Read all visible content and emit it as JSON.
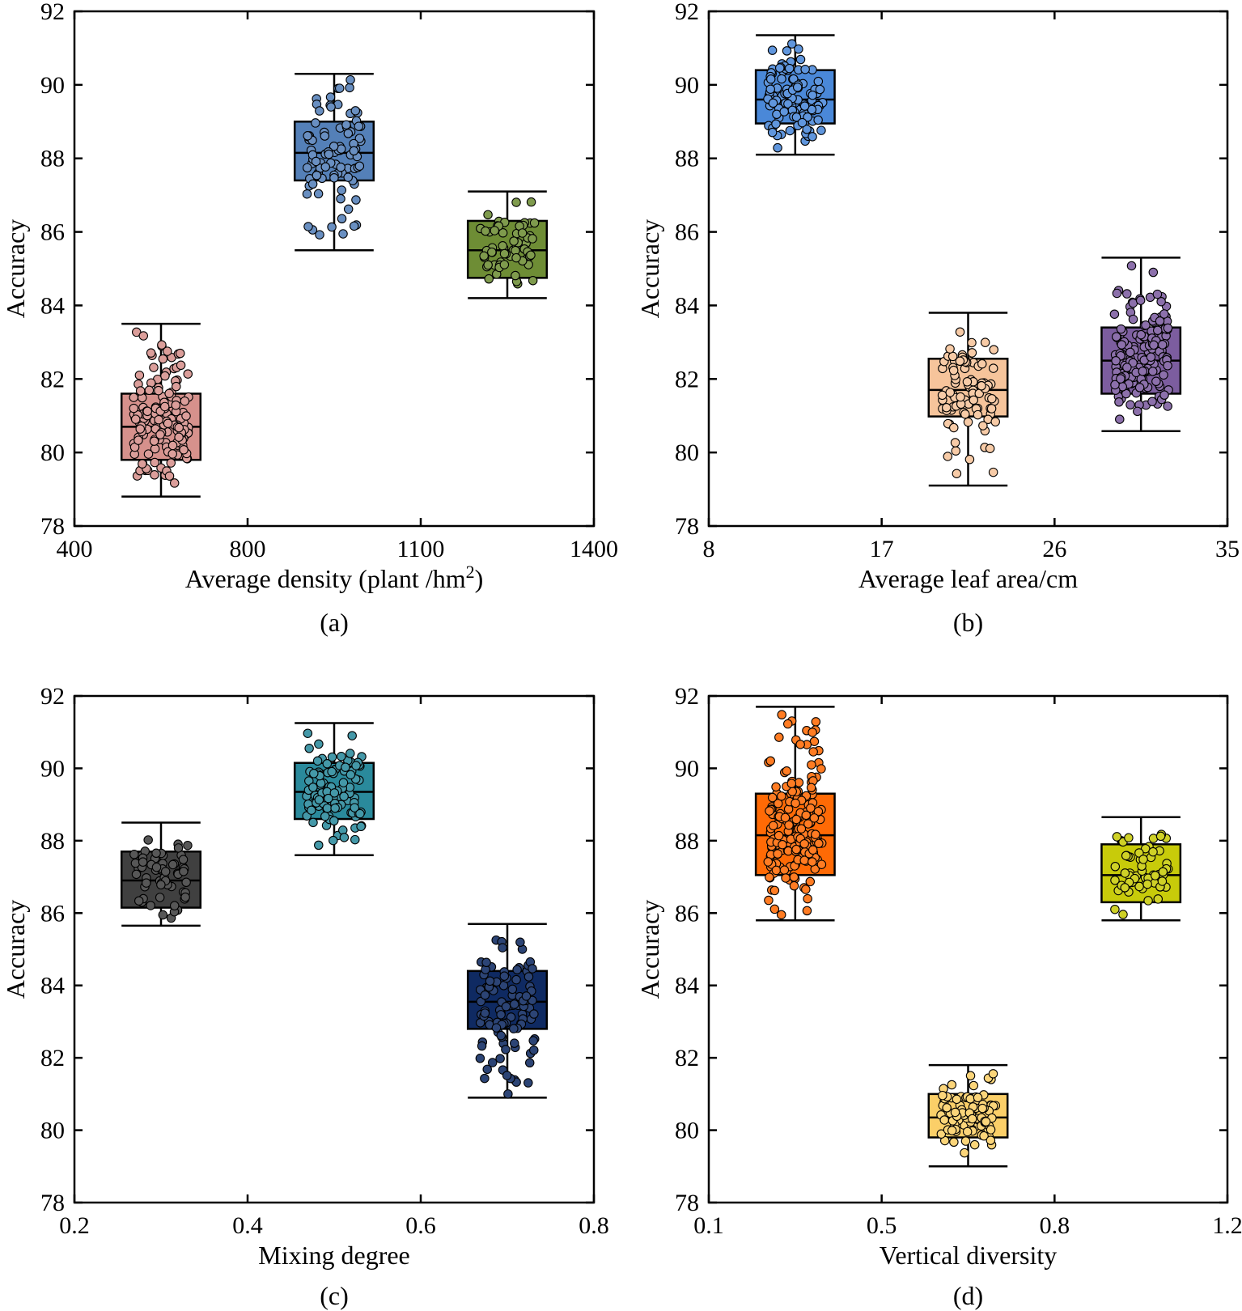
{
  "chart_data": [
    {
      "type": "box",
      "panel_label": "(a)",
      "xlabel": "Average density (plant /hm",
      "xlabel_sup": "2",
      "xlabel_suffix": ")",
      "ylabel": "Accuracy",
      "xticks": [
        "400",
        "800",
        "1100",
        "1400"
      ],
      "ylim": [
        78,
        92
      ],
      "yticks": [
        78,
        80,
        82,
        84,
        86,
        88,
        90,
        92
      ],
      "grid": false,
      "boxes": [
        {
          "x": 0.5,
          "color": "#d6918c",
          "whisker_low": 78.8,
          "q1": 79.8,
          "median": 80.7,
          "q3": 81.6,
          "whisker_high": 83.5,
          "n_points": 150,
          "points_range": [
            78.9,
            83.3
          ]
        },
        {
          "x": 1.5,
          "color": "#5480b8",
          "whisker_low": 85.5,
          "q1": 87.4,
          "median": 88.15,
          "q3": 89.0,
          "whisker_high": 90.3,
          "n_points": 90,
          "points_range": [
            85.7,
            90.2
          ]
        },
        {
          "x": 2.5,
          "color": "#6e8d35",
          "whisker_low": 84.2,
          "q1": 84.75,
          "median": 85.5,
          "q3": 86.3,
          "whisker_high": 87.1,
          "n_points": 60,
          "points_range": [
            84.5,
            86.9
          ]
        }
      ]
    },
    {
      "type": "box",
      "panel_label": "(b)",
      "xlabel": "Average leaf area/cm",
      "xlabel_sup": "",
      "xlabel_suffix": "",
      "ylabel": "Accuracy",
      "xticks": [
        "8",
        "17",
        "26",
        "35"
      ],
      "ylim": [
        78,
        92
      ],
      "yticks": [
        78,
        80,
        82,
        84,
        86,
        88,
        90,
        92
      ],
      "grid": false,
      "boxes": [
        {
          "x": 0.5,
          "color": "#4a88d8",
          "whisker_low": 88.1,
          "q1": 88.95,
          "median": 89.6,
          "q3": 90.4,
          "whisker_high": 91.35,
          "n_points": 110,
          "points_range": [
            88.2,
            91.2
          ]
        },
        {
          "x": 1.5,
          "color": "#f6c49b",
          "whisker_low": 79.1,
          "q1": 80.98,
          "median": 81.7,
          "q3": 82.55,
          "whisker_high": 83.8,
          "n_points": 90,
          "points_range": [
            79.3,
            83.7
          ]
        },
        {
          "x": 2.5,
          "color": "#7c5d9f",
          "whisker_low": 80.58,
          "q1": 81.6,
          "median": 82.5,
          "q3": 83.4,
          "whisker_high": 85.3,
          "n_points": 170,
          "points_range": [
            80.7,
            85.1
          ]
        }
      ]
    },
    {
      "type": "box",
      "panel_label": "(c)",
      "xlabel": "Mixing degree",
      "xlabel_sup": "",
      "xlabel_suffix": "",
      "ylabel": "Accuracy",
      "xticks": [
        "0.2",
        "0.4",
        "0.6",
        "0.8"
      ],
      "ylim": [
        78,
        92
      ],
      "yticks": [
        78,
        80,
        82,
        84,
        86,
        88,
        90,
        92
      ],
      "grid": false,
      "boxes": [
        {
          "x": 0.5,
          "color": "#404040",
          "whisker_low": 85.65,
          "q1": 86.15,
          "median": 86.9,
          "q3": 87.7,
          "whisker_high": 88.5,
          "n_points": 60,
          "points_range": [
            85.8,
            88.2
          ]
        },
        {
          "x": 1.5,
          "color": "#2a8a9c",
          "whisker_low": 87.6,
          "q1": 88.6,
          "median": 89.35,
          "q3": 90.15,
          "whisker_high": 91.25,
          "n_points": 110,
          "points_range": [
            87.8,
            91.1
          ]
        },
        {
          "x": 2.5,
          "color": "#0f2a62",
          "whisker_low": 80.9,
          "q1": 82.8,
          "median": 83.55,
          "q3": 84.4,
          "whisker_high": 85.7,
          "n_points": 100,
          "points_range": [
            81.0,
            85.5
          ]
        }
      ]
    },
    {
      "type": "box",
      "panel_label": "(d)",
      "xlabel": "Vertical diversity",
      "xlabel_sup": "",
      "xlabel_suffix": "",
      "ylabel": "Accuracy",
      "xticks": [
        "0.1",
        "0.5",
        "0.8",
        "1.2"
      ],
      "ylim": [
        78,
        92
      ],
      "yticks": [
        78,
        80,
        82,
        84,
        86,
        88,
        90,
        92
      ],
      "grid": false,
      "boxes": [
        {
          "x": 0.5,
          "color": "#ff6a05",
          "whisker_low": 85.8,
          "q1": 87.05,
          "median": 88.15,
          "q3": 89.3,
          "whisker_high": 91.7,
          "n_points": 180,
          "points_range": [
            85.9,
            91.5
          ]
        },
        {
          "x": 1.5,
          "color": "#fbcf68",
          "whisker_low": 79.0,
          "q1": 79.8,
          "median": 80.35,
          "q3": 81.0,
          "whisker_high": 81.8,
          "n_points": 90,
          "points_range": [
            79.2,
            81.6
          ]
        },
        {
          "x": 2.5,
          "color": "#c8cb0a",
          "whisker_low": 85.8,
          "q1": 86.3,
          "median": 87.05,
          "q3": 87.9,
          "whisker_high": 88.65,
          "n_points": 60,
          "points_range": [
            85.9,
            88.4
          ]
        }
      ]
    }
  ]
}
